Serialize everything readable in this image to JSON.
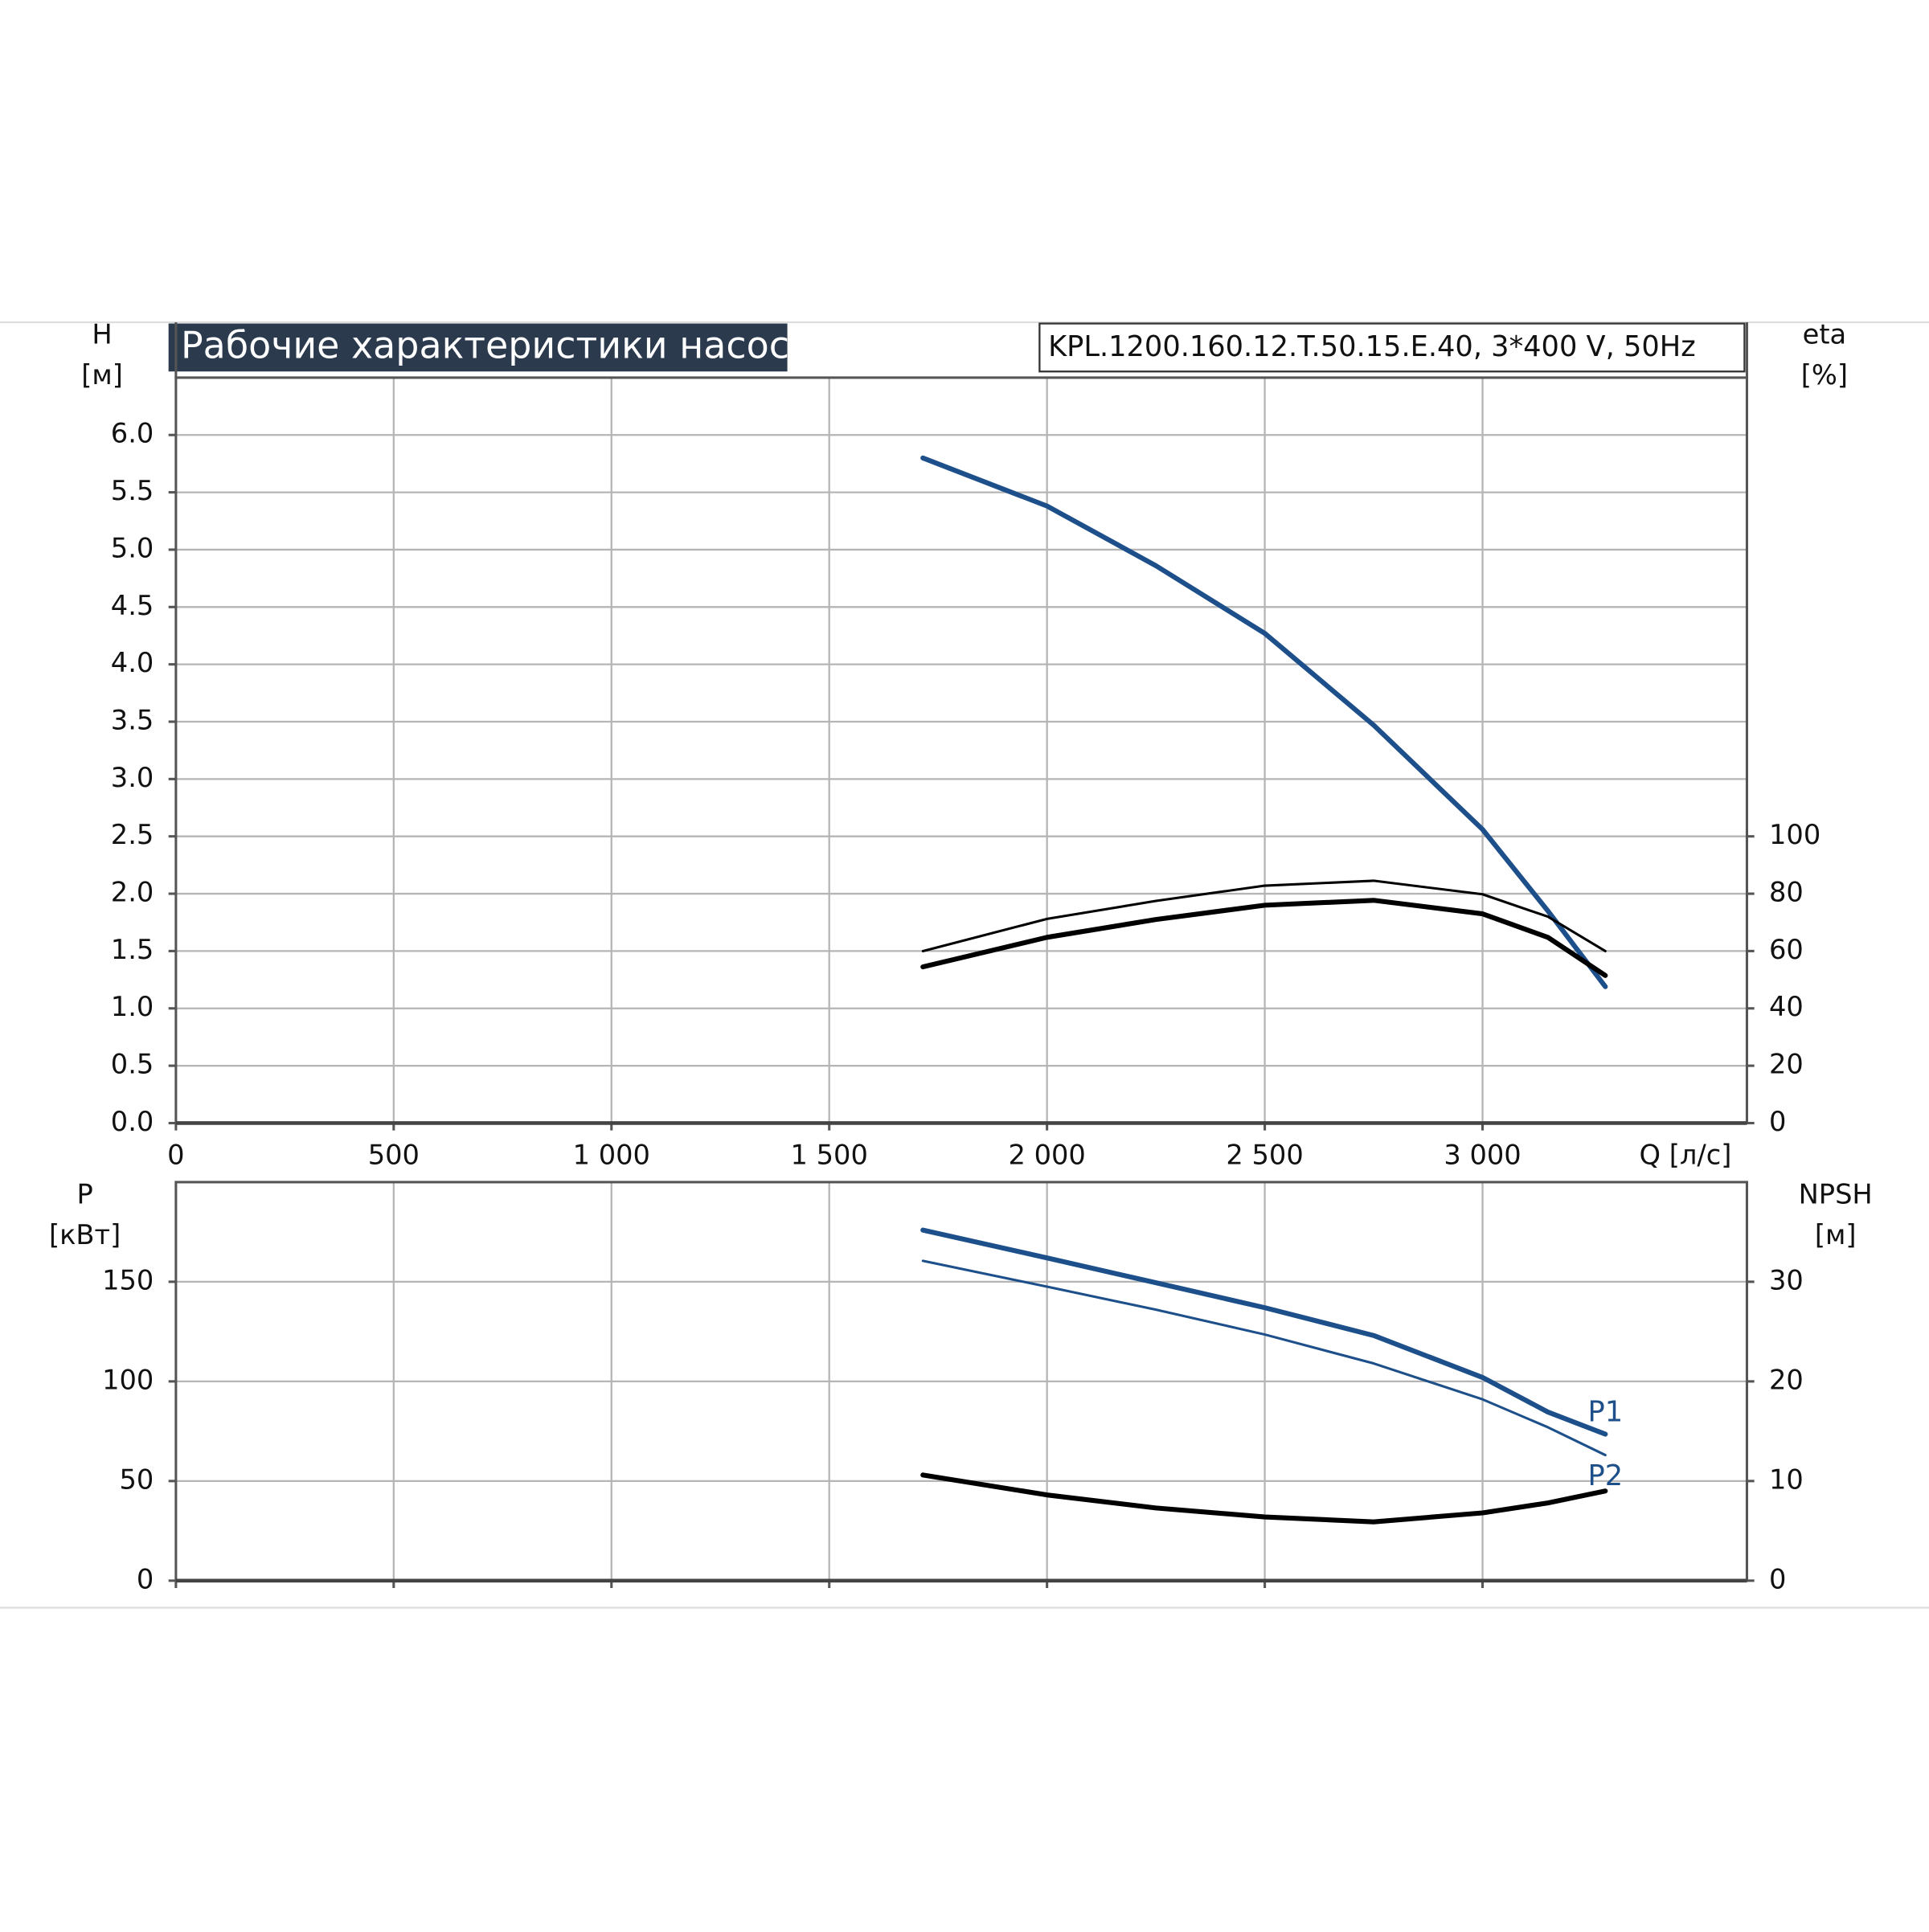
{
  "chart_data": [
    {
      "type": "line",
      "title": "Рабочие характеристики насоса",
      "subtitle": "KPL.1200.160.12.T.50.15.E.40, 3*400 V, 50Hz",
      "ylabel": "H",
      "yunit": "[м]",
      "y2label": "eta",
      "y2unit": "[%]",
      "xlabel": "Q [л/с]",
      "x": [
        1715,
        2000,
        2250,
        2500,
        2750,
        3000,
        3150,
        3282
      ],
      "xlim": [
        0,
        3607
      ],
      "xticks": [
        0,
        500,
        {
          "value": 1000,
          "label": "1 000"
        },
        {
          "value": 1500,
          "label": "1 500"
        },
        {
          "value": 2000,
          "label": "2 000"
        },
        {
          "value": 2500,
          "label": "2 500"
        },
        {
          "value": 3000,
          "label": "3 000"
        }
      ],
      "ylim": [
        0,
        6.5
      ],
      "yticks": [
        {
          "value": 0,
          "label": "0.0"
        },
        0.5,
        {
          "value": 1,
          "label": "1.0"
        },
        1.5,
        {
          "value": 2,
          "label": "2.0"
        },
        2.5,
        {
          "value": 3,
          "label": "3.0"
        },
        3.5,
        {
          "value": 4,
          "label": "4.0"
        },
        4.5,
        {
          "value": 5,
          "label": "5.0"
        },
        5.5,
        {
          "value": 6,
          "label": "6.0"
        }
      ],
      "y2lim": [
        0,
        260
      ],
      "y2ticks": [
        0,
        20,
        40,
        60,
        80,
        100
      ],
      "grid": true,
      "series": [
        {
          "color": "#1d4f8a",
          "linewidth": 4,
          "values": [
            5.8,
            5.38,
            4.86,
            4.27,
            3.47,
            2.56,
            1.85,
            1.19
          ]
        },
        {
          "color": "#000000",
          "linewidth": 2,
          "axis": "y2",
          "values": [
            60,
            71.2,
            77.5,
            82.8,
            84.5,
            79.8,
            72,
            60
          ]
        },
        {
          "color": "#000000",
          "linewidth": 4,
          "axis": "y2",
          "values": [
            54.5,
            64.8,
            71,
            76,
            77.7,
            73,
            64.8,
            51.5
          ]
        }
      ]
    },
    {
      "type": "line",
      "ylabel": "P",
      "yunit": "[кВт]",
      "y2label": "NPSH",
      "y2unit": "[м]",
      "x": [
        1715,
        2000,
        2250,
        2500,
        2750,
        3000,
        3150,
        3282
      ],
      "xlim": [
        0,
        3607
      ],
      "xticks": [
        0,
        500,
        1000,
        1500,
        2000,
        2500,
        3000
      ],
      "xtick_labels": false,
      "ylim": [
        0,
        200
      ],
      "yticks": [
        0,
        50,
        100,
        150
      ],
      "y2lim": [
        0,
        40
      ],
      "y2ticks": [
        0,
        10,
        20,
        30
      ],
      "grid": true,
      "series": [
        {
          "name": "P1",
          "color": "#1d4f8a",
          "linewidth": 4,
          "values": [
            175.9,
            162,
            149.5,
            137,
            123,
            102,
            84.6,
            73.5
          ]
        },
        {
          "name": "P2",
          "color": "#1d4f8a",
          "linewidth": 2,
          "values": [
            160.5,
            147.5,
            136,
            123.5,
            109,
            91,
            77,
            63
          ]
        },
        {
          "color": "#000000",
          "linewidth": 4,
          "axis": "y2",
          "values": [
            10.6,
            8.6,
            7.3,
            6.4,
            5.9,
            6.8,
            7.8,
            9.0
          ]
        }
      ]
    }
  ]
}
